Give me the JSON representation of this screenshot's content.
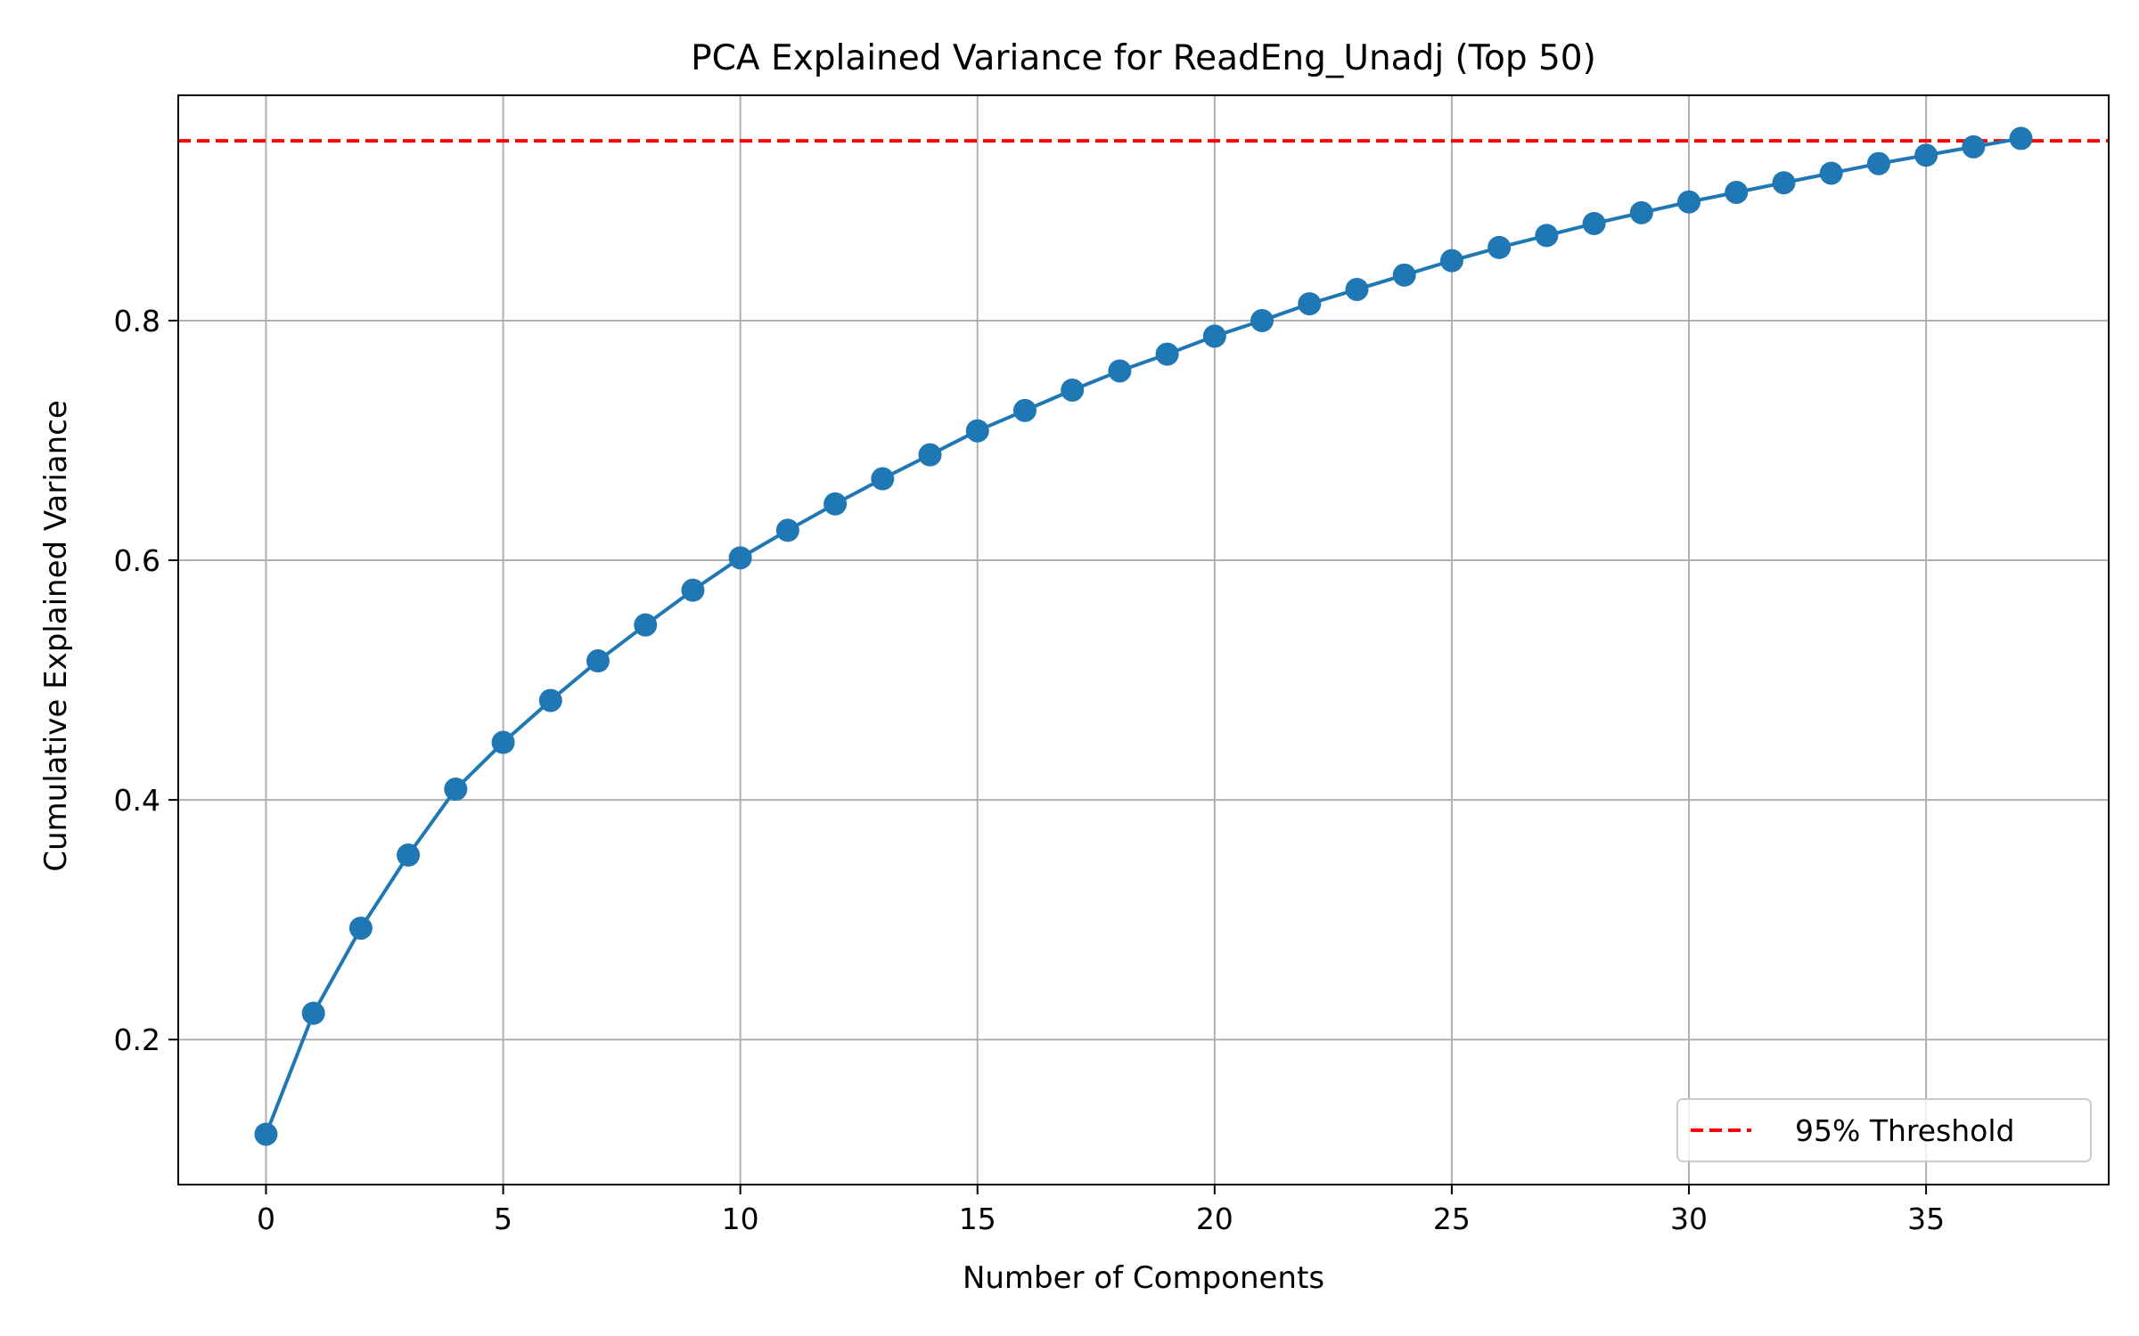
{
  "chart_data": {
    "type": "line",
    "title": "PCA Explained Variance for ReadEng_Unadj (Top 50)",
    "xlabel": "Number of Components",
    "ylabel": "Cumulative Explained Variance",
    "xlim": [
      -1.85,
      38.85
    ],
    "ylim": [
      0.079,
      0.988
    ],
    "xticks": [
      0,
      5,
      10,
      15,
      20,
      25,
      30,
      35
    ],
    "xtick_labels": [
      "0",
      "5",
      "10",
      "15",
      "20",
      "25",
      "30",
      "35"
    ],
    "yticks": [
      0.2,
      0.4,
      0.6,
      0.8
    ],
    "ytick_labels": [
      "0.2",
      "0.4",
      "0.6",
      "0.8"
    ],
    "grid": true,
    "legend_placement": "lower-right",
    "colors": {
      "series": "#1f77b4",
      "threshold": "#ff0000",
      "grid": "#b0b0b0"
    },
    "series": [
      {
        "x": [
          0,
          1,
          2,
          3,
          4,
          5,
          6,
          7,
          8,
          9,
          10,
          11,
          12,
          13,
          14,
          15,
          16,
          17,
          18,
          19,
          20,
          21,
          22,
          23,
          24,
          25,
          26,
          27,
          28,
          29,
          30,
          31,
          32,
          33,
          34,
          35,
          36,
          37
        ],
        "values": [
          0.121,
          0.222,
          0.293,
          0.354,
          0.409,
          0.448,
          0.483,
          0.516,
          0.546,
          0.575,
          0.602,
          0.625,
          0.647,
          0.668,
          0.688,
          0.708,
          0.725,
          0.742,
          0.758,
          0.772,
          0.787,
          0.8,
          0.814,
          0.826,
          0.838,
          0.85,
          0.861,
          0.871,
          0.881,
          0.89,
          0.899,
          0.907,
          0.915,
          0.923,
          0.931,
          0.938,
          0.945,
          0.952
        ]
      }
    ],
    "threshold": {
      "name": "95% Threshold",
      "value": 0.95
    }
  }
}
